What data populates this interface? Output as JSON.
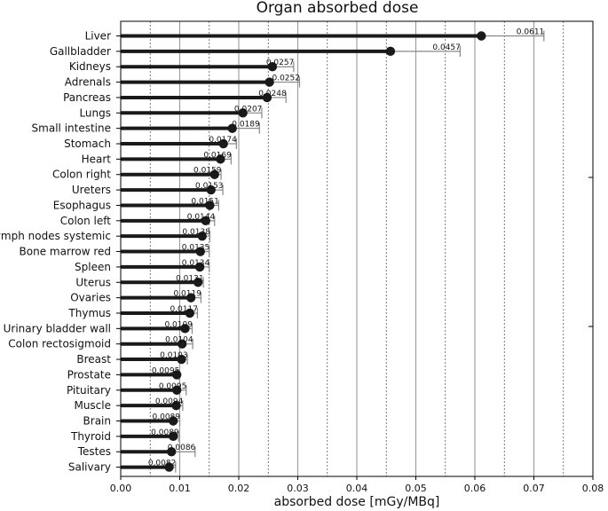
{
  "chart_data": {
    "type": "bar",
    "title": "Organ absorbed dose",
    "xlabel": "absorbed dose [mGy/MBq]",
    "ylabel": "",
    "xlim": [
      0,
      0.08
    ],
    "xticks": [
      0.0,
      0.01,
      0.02,
      0.03,
      0.04,
      0.05,
      0.06,
      0.07,
      0.08
    ],
    "xtick_labels": [
      "0.00",
      "0.01",
      "0.02",
      "0.03",
      "0.04",
      "0.05",
      "0.06",
      "0.07",
      "0.08"
    ],
    "minor_grid": [
      0.005,
      0.015,
      0.025,
      0.035,
      0.045,
      0.055,
      0.065,
      0.075
    ],
    "grid": true,
    "orientation": "horizontal",
    "categories": [
      "Liver",
      "Gallbladder",
      "Kidneys",
      "Adrenals",
      "Pancreas",
      "Lungs",
      "Small intestine",
      "Stomach",
      "Heart",
      "Colon right",
      "Ureters",
      "Esophagus",
      "Colon left",
      "Lymph nodes systemic",
      "Bone marrow red",
      "Spleen",
      "Uterus",
      "Ovaries",
      "Thymus",
      "Urinary bladder wall",
      "Colon rectosigmoid",
      "Breast",
      "Prostate",
      "Pituitary",
      "Muscle",
      "Brain",
      "Thyroid",
      "Testes",
      "Salivary"
    ],
    "values": [
      0.0611,
      0.0457,
      0.0257,
      0.0252,
      0.0248,
      0.0207,
      0.0189,
      0.0174,
      0.0169,
      0.0159,
      0.0153,
      0.0151,
      0.0144,
      0.0138,
      0.0135,
      0.0134,
      0.0131,
      0.0119,
      0.0117,
      0.0109,
      0.0104,
      0.0103,
      0.0095,
      0.0095,
      0.0094,
      0.0089,
      0.0089,
      0.0086,
      0.0082
    ],
    "value_labels": [
      "0.0611",
      "0.0457",
      "0.0257",
      "0.0252",
      "0.0248",
      "0.0207",
      "0.0189",
      "0.0174",
      "0.0169",
      "0.0159",
      "0.0153",
      "0.0151",
      "0.0144",
      "0.0138",
      "0.0135",
      "0.0134",
      "0.0131",
      "0.0119",
      "0.0117",
      "0.0109",
      "0.0104",
      "0.0103",
      "0.0095",
      "0.0095",
      "0.0094",
      "0.0089",
      "0.0089",
      "0.0086",
      "0.0082"
    ],
    "error_upper": [
      0.0717,
      0.0575,
      0.0293,
      0.0303,
      0.028,
      0.0239,
      0.0235,
      0.0196,
      0.0187,
      0.017,
      0.0173,
      0.0166,
      0.0159,
      0.0151,
      0.015,
      0.015,
      0.014,
      0.0136,
      0.013,
      0.0121,
      0.0122,
      0.0113,
      0.0099,
      0.0111,
      0.0105,
      0.01,
      0.0098,
      0.0126,
      0.0093
    ],
    "colors": {
      "bar": "#1a1a1a",
      "error_bar": "#888888",
      "grid_major": "#9a9a9a",
      "grid_minor": "#555555",
      "axis": "#000000"
    }
  }
}
